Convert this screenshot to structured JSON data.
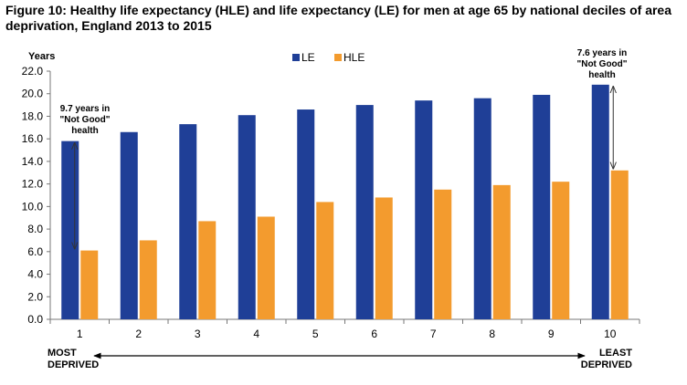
{
  "chart_data": {
    "type": "bar",
    "title": "Figure 10: Healthy life expectancy (HLE) and life expectancy (LE) for men at age 65 by national deciles of area deprivation, England 2013 to 2015",
    "ylabel": "Years",
    "xlabel": "",
    "categories": [
      "1",
      "2",
      "3",
      "4",
      "5",
      "6",
      "7",
      "8",
      "9",
      "10"
    ],
    "series": [
      {
        "name": "LE",
        "color": "#1f3f97",
        "values": [
          15.8,
          16.6,
          17.3,
          18.1,
          18.6,
          19.0,
          19.4,
          19.6,
          19.9,
          20.8
        ]
      },
      {
        "name": "HLE",
        "color": "#f39b2e",
        "values": [
          6.1,
          7.0,
          8.7,
          9.1,
          10.4,
          10.8,
          11.5,
          11.9,
          12.2,
          13.2
        ]
      }
    ],
    "ylim": [
      0,
      22
    ],
    "yticks": [
      "0.0",
      "2.0",
      "4.0",
      "6.0",
      "8.0",
      "10.0",
      "12.0",
      "14.0",
      "16.0",
      "18.0",
      "20.0",
      "22.0"
    ],
    "grid": false,
    "legend": "top-center",
    "annotations": [
      {
        "lines": [
          "9.7 years in",
          "\"Not Good\"",
          "health"
        ],
        "category": "1",
        "from": 6.1,
        "to": 15.8
      },
      {
        "lines": [
          "7.6 years in",
          "\"Not Good\"",
          "health"
        ],
        "category": "10",
        "from": 13.2,
        "to": 20.8
      }
    ],
    "axis_ends": {
      "left": [
        "MOST",
        "DEPRIVED"
      ],
      "right": [
        "LEAST",
        "DEPRIVED"
      ]
    }
  }
}
